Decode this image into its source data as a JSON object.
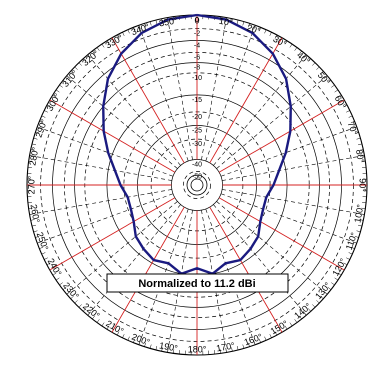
{
  "chart_data": {
    "type": "polar",
    "annotation": "Normalized to 11.2 dBi",
    "angle_ticks": [
      "0",
      "10°",
      "20°",
      "30°",
      "40°",
      "50°",
      "60°",
      "70°",
      "80°",
      "90°",
      "100°",
      "110°",
      "120°",
      "130°",
      "140°",
      "150°",
      "160°",
      "170°",
      "180°",
      "190°",
      "200°",
      "210°",
      "220°",
      "230°",
      "240°",
      "250°",
      "260°",
      "270°",
      "280°",
      "290°",
      "300°",
      "310°",
      "320°",
      "330°",
      "340°",
      "350°"
    ],
    "radial_ticks": [
      "0",
      "-2",
      "-4",
      "-6",
      "-8",
      "-10",
      "-15",
      "-20",
      "-25",
      "-30",
      "-40",
      "-50"
    ],
    "radial_scale": [
      {
        "db": 0,
        "r": 1.0
      },
      {
        "db": -2,
        "r": 0.92
      },
      {
        "db": -4,
        "r": 0.85
      },
      {
        "db": -6,
        "r": 0.78
      },
      {
        "db": -8,
        "r": 0.72
      },
      {
        "db": -10,
        "r": 0.66
      },
      {
        "db": -15,
        "r": 0.53
      },
      {
        "db": -20,
        "r": 0.43
      },
      {
        "db": -25,
        "r": 0.35
      },
      {
        "db": -30,
        "r": 0.27
      },
      {
        "db": -40,
        "r": 0.15
      },
      {
        "db": -50,
        "r": 0.08
      }
    ],
    "series": [
      {
        "color": "#1a1a80",
        "angles": [
          0,
          10,
          20,
          30,
          40,
          50,
          60,
          70,
          80,
          90,
          100,
          110,
          120,
          130,
          140,
          150,
          160,
          170,
          180,
          190,
          200,
          210,
          220,
          230,
          240,
          250,
          260,
          270,
          280,
          290,
          300,
          310,
          320,
          330,
          340,
          350,
          360
        ],
        "values_db": [
          0,
          -0.3,
          -1.2,
          -2.8,
          -5,
          -8,
          -11,
          -14,
          -17,
          -19,
          -21,
          -21,
          -20,
          -18,
          -17,
          -16,
          -17,
          -15,
          -17,
          -15,
          -17,
          -16,
          -17,
          -18,
          -20,
          -21,
          -21,
          -19,
          -17,
          -14,
          -11,
          -8,
          -5,
          -2.8,
          -1.2,
          -0.3,
          0
        ]
      },
      {
        "color": "#cc2222",
        "angles": [
          0,
          10,
          20,
          30,
          40,
          50,
          60,
          70,
          80,
          90,
          100,
          110,
          120,
          130,
          140,
          150,
          160,
          170,
          180,
          190,
          200,
          210,
          220,
          230,
          240,
          250,
          260,
          270,
          280,
          290,
          300,
          310,
          320,
          330,
          340,
          350,
          360
        ],
        "values_db": [
          0,
          -0.3,
          -1.2,
          -2.8,
          -5,
          -8,
          -11,
          -14,
          -17,
          -19,
          -21,
          -21,
          -20,
          -18,
          -17,
          -16,
          -17,
          -15,
          -17,
          -15,
          -17,
          -16,
          -17,
          -18,
          -20,
          -21,
          -21,
          -19,
          -17,
          -14,
          -11,
          -8,
          -5,
          -2.8,
          -1.2,
          -0.3,
          0
        ]
      }
    ]
  }
}
